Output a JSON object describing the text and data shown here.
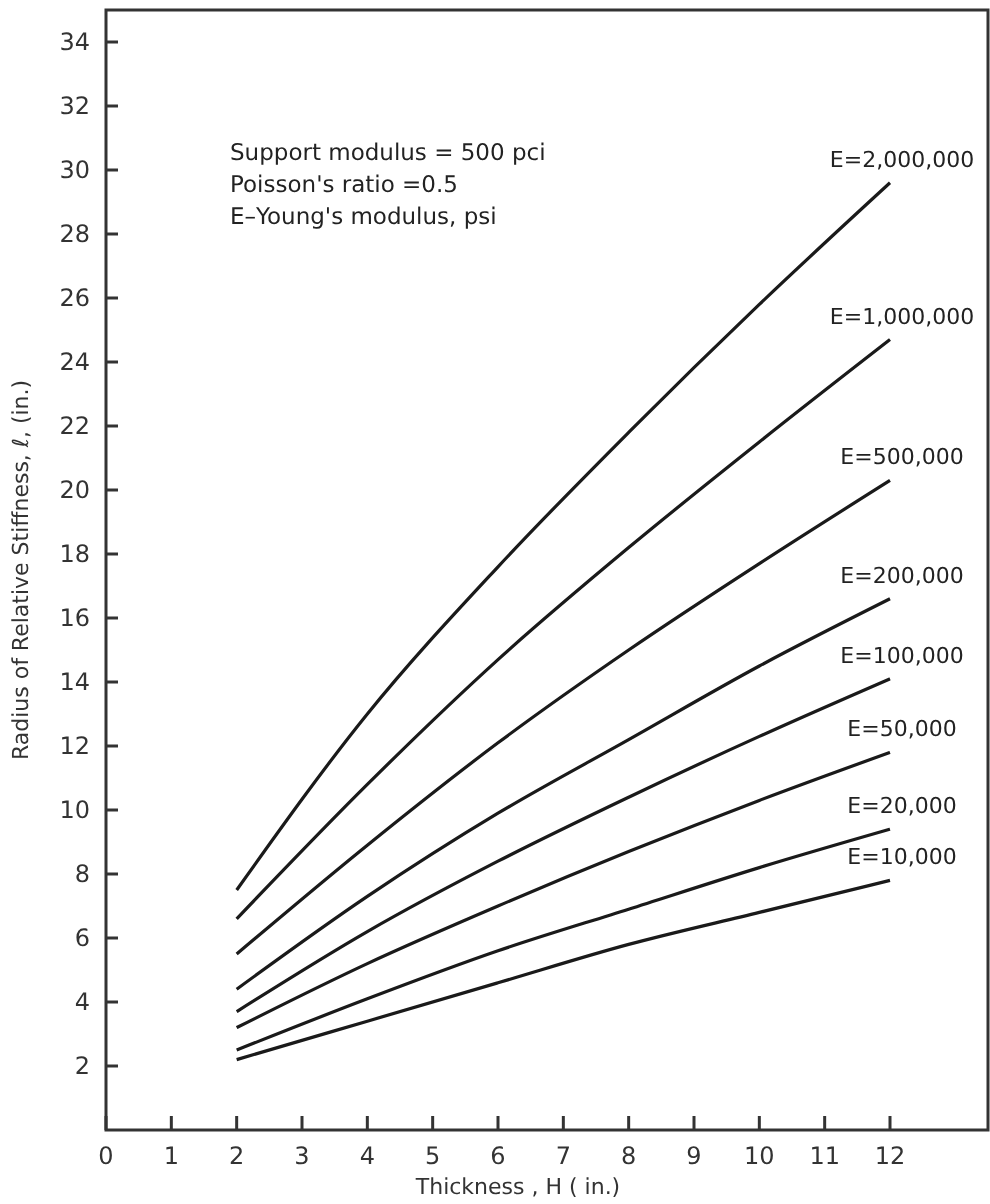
{
  "chart_data": {
    "type": "line",
    "xlabel": "Thickness , H ( in.)",
    "ylabel": "Radius of Relative Stiffness, ℓ, (in.)",
    "annotations": [
      "Support modulus = 500 pci",
      "Poisson's ratio =0.5",
      "E–Young's modulus, psi"
    ],
    "x": [
      2,
      4,
      6,
      8,
      10,
      12
    ],
    "series": [
      {
        "name": "E=2,000,000",
        "color": "#1a1a1a",
        "values": [
          7.5,
          13.0,
          17.6,
          21.8,
          25.8,
          29.6
        ]
      },
      {
        "name": "E=1,000,000",
        "color": "#1a1a1a",
        "values": [
          6.6,
          10.8,
          14.7,
          18.2,
          21.5,
          24.7
        ]
      },
      {
        "name": "E=500,000",
        "color": "#1a1a1a",
        "values": [
          5.5,
          8.9,
          12.1,
          15.0,
          17.7,
          20.3
        ]
      },
      {
        "name": "E=200,000",
        "color": "#1a1a1a",
        "values": [
          4.4,
          7.3,
          9.9,
          12.2,
          14.5,
          16.6
        ]
      },
      {
        "name": "E=100,000",
        "color": "#1a1a1a",
        "values": [
          3.7,
          6.2,
          8.4,
          10.4,
          12.3,
          14.1
        ]
      },
      {
        "name": "E=50,000",
        "color": "#1a1a1a",
        "values": [
          3.2,
          5.2,
          7.0,
          8.7,
          10.3,
          11.8
        ]
      },
      {
        "name": "E=20,000",
        "color": "#1a1a1a",
        "values": [
          2.5,
          4.1,
          5.6,
          6.9,
          8.2,
          9.4
        ]
      },
      {
        "name": "E=10,000",
        "color": "#1a1a1a",
        "values": [
          2.2,
          3.4,
          4.6,
          5.8,
          6.8,
          7.8
        ]
      }
    ],
    "xlim": [
      0,
      13.5
    ],
    "xticks": [
      0,
      1,
      2,
      3,
      4,
      5,
      6,
      7,
      8,
      9,
      10,
      11,
      12
    ],
    "ylim": [
      0,
      35
    ],
    "yticks": [
      2,
      4,
      6,
      8,
      10,
      12,
      14,
      16,
      18,
      20,
      22,
      24,
      26,
      28,
      30,
      32,
      34
    ],
    "grid": false,
    "marker": "none",
    "line_style": "solid"
  }
}
